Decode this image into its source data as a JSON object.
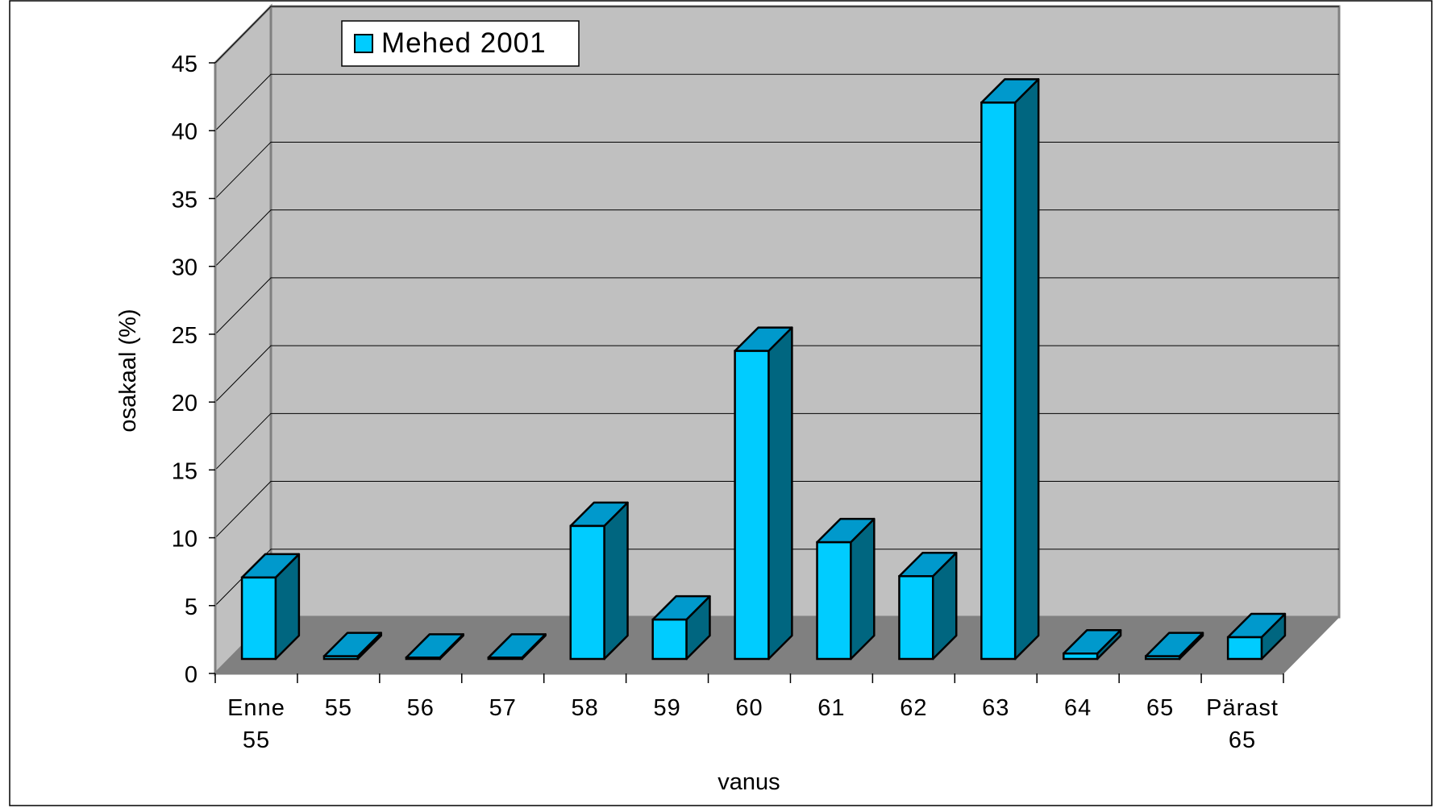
{
  "chart_data": {
    "type": "bar",
    "style": "3d-column",
    "categories": [
      "Enne 55",
      "55",
      "56",
      "57",
      "58",
      "59",
      "60",
      "61",
      "62",
      "63",
      "64",
      "65",
      "Pärast 65"
    ],
    "category_lines": [
      [
        "Enne",
        "55"
      ],
      [
        "55"
      ],
      [
        "56"
      ],
      [
        "57"
      ],
      [
        "58"
      ],
      [
        "59"
      ],
      [
        "60"
      ],
      [
        "61"
      ],
      [
        "62"
      ],
      [
        "63"
      ],
      [
        "64"
      ],
      [
        "65"
      ],
      [
        "Pärast",
        "65"
      ]
    ],
    "series": [
      {
        "name": "Mehed 2001",
        "values": [
          6.0,
          0.2,
          0.1,
          0.1,
          9.8,
          2.9,
          22.7,
          8.6,
          6.1,
          41.0,
          0.4,
          0.2,
          1.6
        ]
      }
    ],
    "xlabel": "vanus",
    "ylabel": "osakaal (%)",
    "ylim": [
      0,
      45
    ],
    "yticks": [
      0,
      5,
      10,
      15,
      20,
      25,
      30,
      35,
      40,
      45
    ],
    "grid": true,
    "legend_position": "top-left",
    "colors": {
      "bar_front": "#00CCFF",
      "bar_top": "#0099CC",
      "bar_side": "#006680",
      "back_wall": "#C0C0C0",
      "side_wall": "#C0C0C0",
      "floor": "#808080",
      "outline": "#000000"
    }
  }
}
